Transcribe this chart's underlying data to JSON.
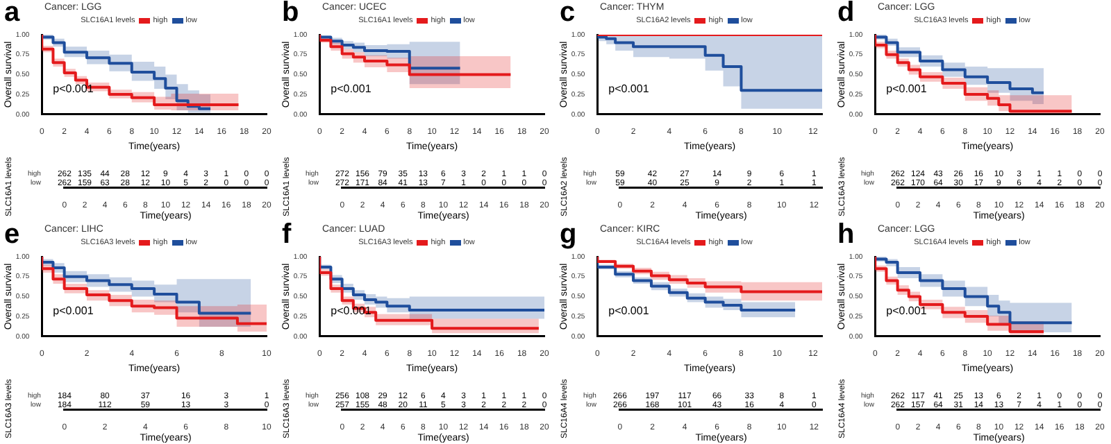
{
  "chart_data": [
    {
      "type": "step",
      "title": "Cancer: LGG",
      "legend_title": "SLC16A1 levels",
      "legend": "top",
      "xlabel": "Time(years)",
      "ylabel": "Overall survival",
      "annotations": [
        "a",
        "p<0.001"
      ],
      "xlim": [
        0,
        20
      ],
      "xticks": [
        0,
        2,
        4,
        6,
        8,
        10,
        12,
        14,
        16,
        18,
        20
      ],
      "ylim": [
        0,
        1
      ],
      "yticks": [
        {
          "value": 0,
          "label": "0.00"
        },
        {
          "value": 0.25,
          "label": "0.25"
        },
        {
          "value": 0.5,
          "label": "0.50"
        },
        {
          "value": 0.75,
          "label": "0.75"
        },
        {
          "value": 1,
          "label": "1.00"
        }
      ],
      "series": [
        {
          "name": "high",
          "color": "#e41a1c",
          "x": [
            0,
            1,
            2,
            3,
            4,
            6,
            8,
            10,
            11.5,
            14,
            17.5
          ],
          "values": [
            1,
            0.82,
            0.65,
            0.52,
            0.43,
            0.34,
            0.25,
            0.21,
            0.12,
            0.12,
            0.12
          ],
          "lower": [
            1,
            0.78,
            0.6,
            0.47,
            0.38,
            0.29,
            0.2,
            0.15,
            0.06,
            0.05,
            0.05
          ],
          "upper": [
            1,
            0.86,
            0.7,
            0.57,
            0.48,
            0.4,
            0.31,
            0.28,
            0.22,
            0.26,
            0.26
          ]
        },
        {
          "name": "low",
          "color": "#1f4e9c",
          "x": [
            0,
            1,
            2,
            4,
            6,
            8,
            10,
            11,
            12,
            13,
            14,
            15
          ],
          "values": [
            1,
            0.97,
            0.9,
            0.78,
            0.71,
            0.64,
            0.53,
            0.45,
            0.33,
            0.17,
            0.1,
            0.07
          ],
          "lower": [
            1,
            0.94,
            0.85,
            0.72,
            0.63,
            0.54,
            0.42,
            0.32,
            0.19,
            0.05,
            0.02,
            0.02
          ],
          "upper": [
            1,
            1,
            0.95,
            0.85,
            0.8,
            0.75,
            0.66,
            0.6,
            0.5,
            0.38,
            0.3,
            0.25
          ]
        }
      ]
    },
    {
      "type": "heatmap",
      "xlabel": "Time(years)",
      "ylabel": "SLC16A1 levels",
      "x": [
        0,
        2,
        4,
        6,
        8,
        10,
        12,
        14,
        16,
        18,
        20
      ],
      "xlim": [
        0,
        20
      ],
      "xticks": [
        0,
        2,
        4,
        6,
        8,
        10,
        12,
        14,
        16,
        18,
        20
      ],
      "y_categories": [
        "high",
        "low"
      ],
      "data_labels": true,
      "cells": [
        [
          262,
          135,
          44,
          28,
          12,
          9,
          4,
          3,
          1,
          0,
          0
        ],
        [
          262,
          159,
          63,
          28,
          12,
          10,
          5,
          2,
          0,
          0,
          0
        ]
      ]
    },
    {
      "type": "step",
      "title": "Cancer: UCEC",
      "legend_title": "SLC16A1 levels",
      "legend": "top",
      "xlabel": "Time(years)",
      "ylabel": "Overall survival",
      "annotations": [
        "b",
        "p<0.001"
      ],
      "xlim": [
        0,
        20
      ],
      "xticks": [
        0,
        2,
        4,
        6,
        8,
        10,
        12,
        14,
        16,
        18,
        20
      ],
      "ylim": [
        0,
        1
      ],
      "yticks": [
        {
          "value": 0,
          "label": "0.00"
        },
        {
          "value": 0.25,
          "label": "0.25"
        },
        {
          "value": 0.5,
          "label": "0.50"
        },
        {
          "value": 0.75,
          "label": "0.75"
        },
        {
          "value": 1,
          "label": "1.00"
        }
      ],
      "series": [
        {
          "name": "high",
          "color": "#e41a1c",
          "x": [
            0,
            1,
            2,
            3,
            4,
            6,
            8,
            9,
            17
          ],
          "values": [
            1,
            0.93,
            0.85,
            0.76,
            0.72,
            0.67,
            0.62,
            0.5,
            0.5
          ],
          "lower": [
            1,
            0.9,
            0.8,
            0.7,
            0.65,
            0.59,
            0.53,
            0.33,
            0.33
          ],
          "upper": [
            1,
            0.96,
            0.9,
            0.82,
            0.78,
            0.74,
            0.71,
            0.73,
            0.73
          ]
        },
        {
          "name": "low",
          "color": "#1f4e9c",
          "x": [
            0,
            1,
            2,
            3,
            4,
            6,
            8,
            9,
            12.5
          ],
          "values": [
            1,
            0.97,
            0.92,
            0.87,
            0.84,
            0.8,
            0.79,
            0.58,
            0.58
          ],
          "lower": [
            1,
            0.95,
            0.88,
            0.82,
            0.78,
            0.73,
            0.7,
            0.38,
            0.38
          ],
          "upper": [
            1,
            0.99,
            0.96,
            0.92,
            0.9,
            0.87,
            0.88,
            0.91,
            0.91
          ]
        }
      ]
    },
    {
      "type": "heatmap",
      "xlabel": "Time(years)",
      "ylabel": "SLC16A1 levels",
      "x": [
        0,
        2,
        4,
        6,
        8,
        10,
        12,
        14,
        16,
        18,
        20
      ],
      "xlim": [
        0,
        20
      ],
      "xticks": [
        0,
        2,
        4,
        6,
        8,
        10,
        12,
        14,
        16,
        18,
        20
      ],
      "y_categories": [
        "high",
        "low"
      ],
      "data_labels": true,
      "cells": [
        [
          272,
          156,
          79,
          35,
          13,
          6,
          3,
          2,
          1,
          1,
          0
        ],
        [
          272,
          171,
          84,
          41,
          13,
          7,
          1,
          0,
          0,
          0,
          0
        ]
      ]
    },
    {
      "type": "step",
      "title": "Cancer: THYM",
      "legend_title": "SLC16A2 levels",
      "legend": "top",
      "xlabel": "Time(years)",
      "ylabel": "Overall survival",
      "annotations": [
        "c",
        "p<0.001"
      ],
      "xlim": [
        0,
        12.5
      ],
      "xticks": [
        0,
        2,
        4,
        6,
        8,
        10,
        12
      ],
      "ylim": [
        0,
        1
      ],
      "yticks": [
        {
          "value": 0,
          "label": "0.00"
        },
        {
          "value": 0.25,
          "label": "0.25"
        },
        {
          "value": 0.5,
          "label": "0.50"
        },
        {
          "value": 0.75,
          "label": "0.75"
        },
        {
          "value": 1,
          "label": "1.00"
        }
      ],
      "series": [
        {
          "name": "high",
          "color": "#e41a1c",
          "x": [
            0,
            12.5
          ],
          "values": [
            1,
            1
          ]
        },
        {
          "name": "low",
          "color": "#1f4e9c",
          "x": [
            0,
            0.5,
            1,
            2,
            4,
            6,
            7,
            8,
            9.5,
            12.5
          ],
          "values": [
            1,
            0.97,
            0.95,
            0.9,
            0.85,
            0.85,
            0.74,
            0.6,
            0.3,
            0.3
          ],
          "lower": [
            1,
            0.92,
            0.88,
            0.8,
            0.72,
            0.7,
            0.55,
            0.35,
            0.07,
            0.07
          ],
          "upper": [
            1,
            1,
            1,
            1,
            1,
            1,
            1,
            1,
            1,
            1
          ]
        }
      ]
    },
    {
      "type": "heatmap",
      "xlabel": "Time(years)",
      "ylabel": "SLC16A2 levels",
      "x": [
        0,
        2,
        4,
        6,
        8,
        10,
        12
      ],
      "xlim": [
        0,
        12.5
      ],
      "xticks": [
        0,
        2,
        4,
        6,
        8,
        10,
        12
      ],
      "y_categories": [
        "high",
        "low"
      ],
      "data_labels": true,
      "cells": [
        [
          59,
          42,
          27,
          14,
          9,
          6,
          1
        ],
        [
          59,
          40,
          25,
          9,
          2,
          1,
          1
        ]
      ]
    },
    {
      "type": "step",
      "title": "Cancer: LGG",
      "legend_title": "SLC16A3 levels",
      "legend": "top",
      "xlabel": "Time(years)",
      "ylabel": "Overall survival",
      "annotations": [
        "d",
        "p<0.001"
      ],
      "xlim": [
        0,
        20
      ],
      "xticks": [
        0,
        2,
        4,
        6,
        8,
        10,
        12,
        14,
        16,
        18,
        20
      ],
      "ylim": [
        0,
        1
      ],
      "yticks": [
        {
          "value": 0,
          "label": "0.00"
        },
        {
          "value": 0.25,
          "label": "0.25"
        },
        {
          "value": 0.5,
          "label": "0.50"
        },
        {
          "value": 0.75,
          "label": "0.75"
        },
        {
          "value": 1,
          "label": "1.00"
        }
      ],
      "series": [
        {
          "name": "high",
          "color": "#e41a1c",
          "x": [
            0,
            1,
            2,
            3,
            4,
            6,
            8,
            10,
            11,
            12,
            12.5,
            17.5
          ],
          "values": [
            1,
            0.87,
            0.75,
            0.65,
            0.56,
            0.47,
            0.39,
            0.25,
            0.2,
            0.12,
            0.04,
            0.04
          ],
          "lower": [
            1,
            0.83,
            0.7,
            0.6,
            0.5,
            0.41,
            0.32,
            0.17,
            0.11,
            0.04,
            0.01,
            0.01
          ],
          "upper": [
            1,
            0.91,
            0.8,
            0.7,
            0.62,
            0.53,
            0.46,
            0.34,
            0.3,
            0.24,
            0.24,
            0.24
          ]
        },
        {
          "name": "low",
          "color": "#1f4e9c",
          "x": [
            0,
            1,
            2,
            4,
            6,
            8,
            10,
            12,
            14,
            15
          ],
          "values": [
            1,
            0.97,
            0.9,
            0.78,
            0.67,
            0.56,
            0.47,
            0.4,
            0.32,
            0.27
          ],
          "lower": [
            1,
            0.94,
            0.86,
            0.72,
            0.6,
            0.47,
            0.37,
            0.27,
            0.17,
            0.13
          ],
          "upper": [
            1,
            1,
            0.95,
            0.84,
            0.74,
            0.65,
            0.6,
            0.58,
            0.58,
            0.58
          ]
        }
      ]
    },
    {
      "type": "heatmap",
      "xlabel": "Time(years)",
      "ylabel": "SLC16A3 levels",
      "x": [
        0,
        2,
        4,
        6,
        8,
        10,
        12,
        14,
        16,
        18,
        20
      ],
      "xlim": [
        0,
        20
      ],
      "xticks": [
        0,
        2,
        4,
        6,
        8,
        10,
        12,
        14,
        16,
        18,
        20
      ],
      "y_categories": [
        "high",
        "low"
      ],
      "data_labels": true,
      "cells": [
        [
          262,
          124,
          43,
          26,
          16,
          10,
          3,
          1,
          1,
          0,
          0
        ],
        [
          262,
          170,
          64,
          30,
          17,
          9,
          6,
          4,
          2,
          0,
          0
        ]
      ]
    },
    {
      "type": "step",
      "title": "Cancer: LIHC",
      "legend_title": "SLC16A3 levels",
      "legend": "top",
      "xlabel": "Time(years)",
      "ylabel": "Overall survival",
      "annotations": [
        "e",
        "p<0.001"
      ],
      "xlim": [
        0,
        10
      ],
      "xticks": [
        0,
        2,
        4,
        6,
        8,
        10
      ],
      "ylim": [
        0,
        1
      ],
      "yticks": [
        {
          "value": 0,
          "label": "0.00"
        },
        {
          "value": 0.25,
          "label": "0.25"
        },
        {
          "value": 0.5,
          "label": "0.50"
        },
        {
          "value": 0.75,
          "label": "0.75"
        },
        {
          "value": 1,
          "label": "1.00"
        }
      ],
      "series": [
        {
          "name": "high",
          "color": "#e41a1c",
          "x": [
            0,
            0.5,
            1,
            2,
            3,
            4,
            5,
            6,
            7,
            8.7,
            9.3,
            10
          ],
          "values": [
            1,
            0.85,
            0.72,
            0.6,
            0.52,
            0.45,
            0.38,
            0.36,
            0.23,
            0.23,
            0.16,
            0.16
          ],
          "lower": [
            1,
            0.8,
            0.66,
            0.54,
            0.45,
            0.38,
            0.3,
            0.27,
            0.12,
            0.12,
            0.06,
            0.06
          ],
          "upper": [
            1,
            0.9,
            0.78,
            0.66,
            0.58,
            0.52,
            0.46,
            0.45,
            0.38,
            0.38,
            0.4,
            0.4
          ]
        },
        {
          "name": "low",
          "color": "#1f4e9c",
          "x": [
            0,
            0.5,
            1,
            2,
            3,
            4,
            5,
            6,
            7,
            8.7,
            9.3
          ],
          "values": [
            1,
            0.93,
            0.86,
            0.75,
            0.7,
            0.65,
            0.6,
            0.53,
            0.43,
            0.29,
            0.29
          ],
          "lower": [
            1,
            0.89,
            0.8,
            0.68,
            0.62,
            0.56,
            0.5,
            0.43,
            0.3,
            0.12,
            0.12
          ],
          "upper": [
            1,
            0.97,
            0.92,
            0.82,
            0.78,
            0.74,
            0.7,
            0.65,
            0.72,
            0.72,
            0.72
          ]
        }
      ]
    },
    {
      "type": "heatmap",
      "xlabel": "Time(years)",
      "ylabel": "SLC16A3 levels",
      "x": [
        0,
        2,
        4,
        6,
        8,
        10
      ],
      "xlim": [
        0,
        10
      ],
      "xticks": [
        0,
        2,
        4,
        6,
        8,
        10
      ],
      "y_categories": [
        "high",
        "low"
      ],
      "data_labels": true,
      "cells": [
        [
          184,
          80,
          37,
          16,
          3,
          1
        ],
        [
          184,
          112,
          59,
          13,
          3,
          0
        ]
      ]
    },
    {
      "type": "step",
      "title": "Cancer: LUAD",
      "legend_title": "SLC16A3 levels",
      "legend": "top",
      "xlabel": "Time(years)",
      "ylabel": "Overall survival",
      "annotations": [
        "f",
        "p<0.001"
      ],
      "xlim": [
        0,
        20
      ],
      "xticks": [
        0,
        2,
        4,
        6,
        8,
        10,
        12,
        14,
        16,
        18,
        20
      ],
      "ylim": [
        0,
        1
      ],
      "yticks": [
        {
          "value": 0,
          "label": "0.00"
        },
        {
          "value": 0.25,
          "label": "0.25"
        },
        {
          "value": 0.5,
          "label": "0.50"
        },
        {
          "value": 0.75,
          "label": "0.75"
        },
        {
          "value": 1,
          "label": "1.00"
        }
      ],
      "series": [
        {
          "name": "high",
          "color": "#e41a1c",
          "x": [
            0,
            1,
            2,
            3,
            4,
            5,
            6,
            8,
            10,
            13.5,
            19.5
          ],
          "values": [
            1,
            0.8,
            0.6,
            0.45,
            0.35,
            0.3,
            0.2,
            0.2,
            0.2,
            0.1,
            0.1
          ],
          "lower": [
            1,
            0.76,
            0.55,
            0.4,
            0.3,
            0.24,
            0.14,
            0.14,
            0.14,
            0.04,
            0.04
          ],
          "upper": [
            1,
            0.84,
            0.65,
            0.5,
            0.41,
            0.37,
            0.28,
            0.28,
            0.28,
            0.22,
            0.22
          ]
        },
        {
          "name": "low",
          "color": "#1f4e9c",
          "x": [
            0,
            1,
            2,
            3,
            4,
            5,
            6,
            8,
            9,
            20
          ],
          "values": [
            1,
            0.87,
            0.72,
            0.6,
            0.52,
            0.46,
            0.43,
            0.38,
            0.33,
            0.33
          ],
          "lower": [
            1,
            0.84,
            0.67,
            0.55,
            0.46,
            0.4,
            0.36,
            0.3,
            0.22,
            0.22
          ],
          "upper": [
            1,
            0.9,
            0.77,
            0.66,
            0.58,
            0.53,
            0.5,
            0.48,
            0.5,
            0.5
          ]
        }
      ]
    },
    {
      "type": "heatmap",
      "xlabel": "Time(years)",
      "ylabel": "SLC16A3 levels",
      "x": [
        0,
        2,
        4,
        6,
        8,
        10,
        12,
        14,
        16,
        18,
        20
      ],
      "xlim": [
        0,
        20
      ],
      "xticks": [
        0,
        2,
        4,
        6,
        8,
        10,
        12,
        14,
        16,
        18,
        20
      ],
      "y_categories": [
        "high",
        "low"
      ],
      "data_labels": true,
      "cells": [
        [
          256,
          108,
          29,
          12,
          6,
          4,
          3,
          1,
          1,
          1,
          0
        ],
        [
          257,
          155,
          48,
          20,
          11,
          5,
          3,
          2,
          2,
          2,
          0
        ]
      ]
    },
    {
      "type": "step",
      "title": "Cancer: KIRC",
      "legend_title": "SLC16A4 levels",
      "legend": "top",
      "xlabel": "Time(years)",
      "ylabel": "Overall survival",
      "annotations": [
        "g",
        "p<0.001"
      ],
      "xlim": [
        0,
        12.5
      ],
      "xticks": [
        0,
        2,
        4,
        6,
        8,
        10,
        12
      ],
      "ylim": [
        0,
        1
      ],
      "yticks": [
        {
          "value": 0,
          "label": "0.00"
        },
        {
          "value": 0.25,
          "label": "0.25"
        },
        {
          "value": 0.5,
          "label": "0.50"
        },
        {
          "value": 0.75,
          "label": "0.75"
        },
        {
          "value": 1,
          "label": "1.00"
        }
      ],
      "series": [
        {
          "name": "high",
          "color": "#e41a1c",
          "x": [
            0,
            1,
            2,
            3,
            4,
            5,
            6,
            7,
            8,
            10,
            12.5
          ],
          "values": [
            1,
            0.94,
            0.88,
            0.82,
            0.76,
            0.71,
            0.67,
            0.62,
            0.62,
            0.56,
            0.56
          ],
          "lower": [
            1,
            0.92,
            0.85,
            0.78,
            0.71,
            0.66,
            0.61,
            0.55,
            0.55,
            0.45,
            0.45
          ],
          "upper": [
            1,
            0.96,
            0.91,
            0.86,
            0.81,
            0.77,
            0.73,
            0.69,
            0.69,
            0.68,
            0.68
          ]
        },
        {
          "name": "low",
          "color": "#1f4e9c",
          "x": [
            0,
            1,
            2,
            3,
            4,
            5,
            6,
            7,
            8,
            10,
            11
          ],
          "values": [
            1,
            0.87,
            0.78,
            0.7,
            0.63,
            0.55,
            0.48,
            0.43,
            0.39,
            0.33,
            0.33
          ],
          "lower": [
            1,
            0.84,
            0.74,
            0.66,
            0.58,
            0.5,
            0.43,
            0.36,
            0.33,
            0.24,
            0.24
          ],
          "upper": [
            1,
            0.9,
            0.82,
            0.74,
            0.68,
            0.6,
            0.54,
            0.5,
            0.47,
            0.43,
            0.43
          ]
        }
      ]
    },
    {
      "type": "heatmap",
      "xlabel": "Time(years)",
      "ylabel": "SLC16A4 levels",
      "x": [
        0,
        2,
        4,
        6,
        8,
        10,
        12
      ],
      "xlim": [
        0,
        12.5
      ],
      "xticks": [
        0,
        2,
        4,
        6,
        8,
        10,
        12
      ],
      "y_categories": [
        "high",
        "low"
      ],
      "data_labels": true,
      "cells": [
        [
          266,
          197,
          117,
          66,
          33,
          8,
          1
        ],
        [
          266,
          168,
          101,
          43,
          16,
          4,
          0
        ]
      ]
    },
    {
      "type": "step",
      "title": "Cancer: LGG",
      "legend_title": "SLC16A4 levels",
      "legend": "top",
      "xlabel": "Time(years)",
      "ylabel": "Overall survival",
      "annotations": [
        "h",
        "p<0.001"
      ],
      "xlim": [
        0,
        20
      ],
      "xticks": [
        0,
        2,
        4,
        6,
        8,
        10,
        12,
        14,
        16,
        18,
        20
      ],
      "ylim": [
        0,
        1
      ],
      "yticks": [
        {
          "value": 0,
          "label": "0.00"
        },
        {
          "value": 0.25,
          "label": "0.25"
        },
        {
          "value": 0.5,
          "label": "0.50"
        },
        {
          "value": 0.75,
          "label": "0.75"
        },
        {
          "value": 1,
          "label": "1.00"
        }
      ],
      "series": [
        {
          "name": "high",
          "color": "#e41a1c",
          "x": [
            0,
            1,
            2,
            3,
            4,
            6,
            8,
            10,
            12,
            12.5,
            15
          ],
          "values": [
            1,
            0.85,
            0.7,
            0.58,
            0.5,
            0.4,
            0.3,
            0.25,
            0.15,
            0.06,
            0.06
          ],
          "lower": [
            1,
            0.81,
            0.65,
            0.52,
            0.44,
            0.34,
            0.23,
            0.17,
            0.07,
            0.02,
            0.02
          ],
          "upper": [
            1,
            0.89,
            0.75,
            0.64,
            0.56,
            0.46,
            0.37,
            0.33,
            0.26,
            0.19,
            0.19
          ]
        },
        {
          "name": "low",
          "color": "#1f4e9c",
          "x": [
            0,
            1,
            2,
            4,
            6,
            8,
            10,
            11,
            12,
            14,
            17.5
          ],
          "values": [
            1,
            0.97,
            0.93,
            0.8,
            0.7,
            0.6,
            0.5,
            0.38,
            0.3,
            0.17,
            0.17
          ],
          "lower": [
            1,
            0.94,
            0.88,
            0.73,
            0.62,
            0.5,
            0.38,
            0.25,
            0.16,
            0.05,
            0.05
          ],
          "upper": [
            1,
            1,
            0.97,
            0.87,
            0.78,
            0.7,
            0.62,
            0.52,
            0.45,
            0.42,
            0.42
          ]
        }
      ]
    },
    {
      "type": "heatmap",
      "xlabel": "Time(years)",
      "ylabel": "SLC16A4 levels",
      "x": [
        0,
        2,
        4,
        6,
        8,
        10,
        12,
        14,
        16,
        18,
        20
      ],
      "xlim": [
        0,
        20
      ],
      "xticks": [
        0,
        2,
        4,
        6,
        8,
        10,
        12,
        14,
        16,
        18,
        20
      ],
      "y_categories": [
        "high",
        "low"
      ],
      "data_labels": true,
      "cells": [
        [
          262,
          117,
          41,
          25,
          13,
          6,
          2,
          1,
          0,
          0,
          0
        ],
        [
          262,
          157,
          64,
          31,
          14,
          13,
          7,
          4,
          1,
          0,
          0
        ]
      ]
    }
  ]
}
